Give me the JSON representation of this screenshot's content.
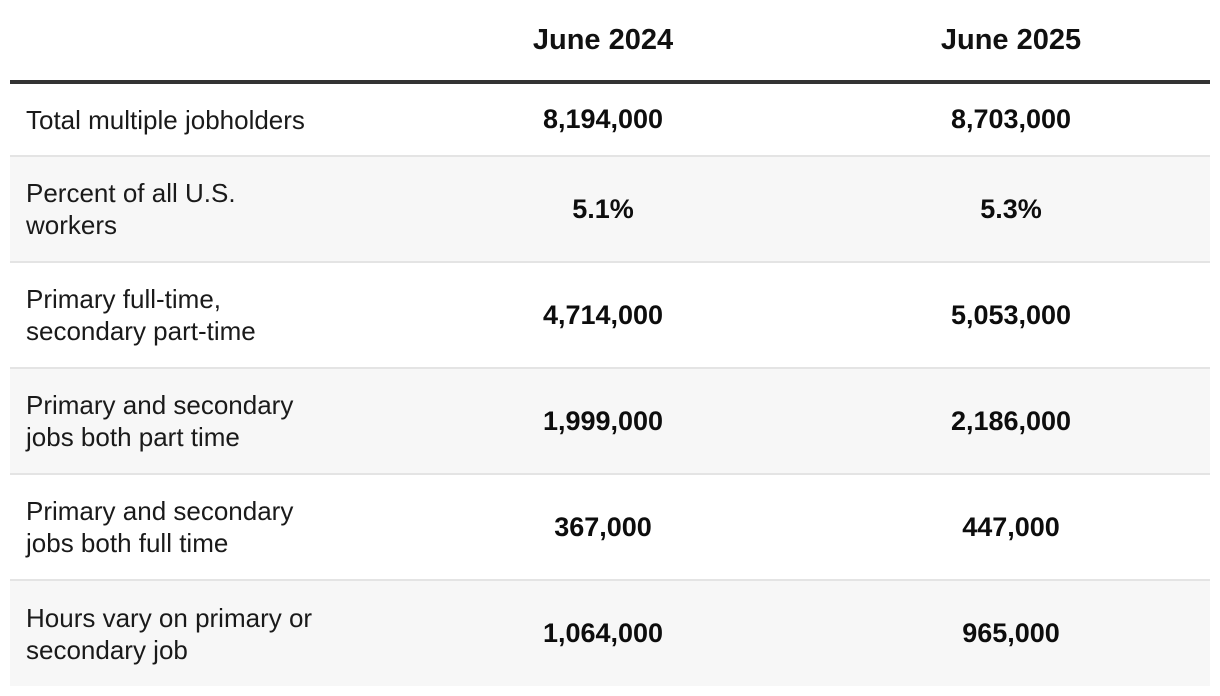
{
  "chart_data": {
    "type": "table",
    "columns": [
      "June 2024",
      "June 2025"
    ],
    "rows": [
      {
        "label": "Total multiple jobholders",
        "values": [
          "8,194,000",
          "8,703,000"
        ]
      },
      {
        "label": "Percent of all U.S. workers",
        "values": [
          "5.1%",
          "5.3%"
        ]
      },
      {
        "label": "Primary full-time, secondary part-time",
        "values": [
          "4,714,000",
          "5,053,000"
        ]
      },
      {
        "label": "Primary and secondary jobs both part time",
        "values": [
          "1,999,000",
          "2,186,000"
        ]
      },
      {
        "label": "Primary and secondary jobs both full time",
        "values": [
          "367,000",
          "447,000"
        ]
      },
      {
        "label": "Hours vary on primary or secondary job",
        "values": [
          "1,064,000",
          "965,000"
        ]
      }
    ]
  }
}
